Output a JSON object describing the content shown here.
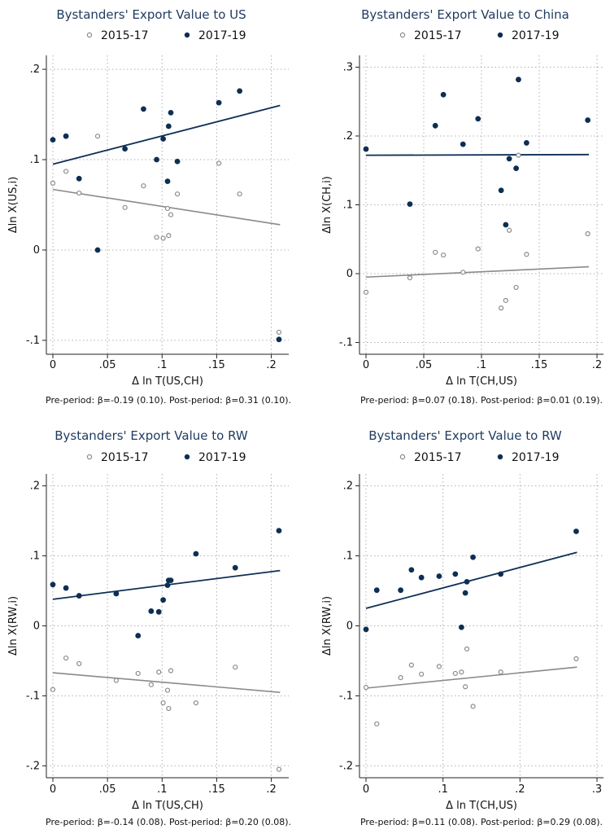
{
  "colors": {
    "pre": "#8a8a8a",
    "post": "#0d2f55",
    "grid": "#b0b0b0",
    "axis": "#222222",
    "title": "#1f3a5f"
  },
  "legend_labels": [
    "2015-17",
    "2017-19"
  ],
  "chart_data": [
    {
      "type": "scatter",
      "title": "Bystanders' Export Value to US",
      "xlabel": "Δ ln T(US,CH)",
      "ylabel": "Δln X(US,i)",
      "xticks": [
        "0",
        ".05",
        ".1",
        ".15",
        ".2"
      ],
      "yticks": [
        ".2",
        ".1",
        "0",
        "-.1"
      ],
      "xlim": [
        0,
        0.21
      ],
      "ylim": [
        -0.11,
        0.21
      ],
      "legend_position": "top",
      "grid": true,
      "note": "Pre-period: β=-0.19 (0.10). Post-period: β=0.31 (0.10).",
      "series": [
        {
          "name": "2015-17",
          "points": [
            [
              0.0,
              0.074
            ],
            [
              0.012,
              0.087
            ],
            [
              0.024,
              0.063
            ],
            [
              0.041,
              0.126
            ],
            [
              0.066,
              0.047
            ],
            [
              0.083,
              0.071
            ],
            [
              0.095,
              0.014
            ],
            [
              0.101,
              0.013
            ],
            [
              0.105,
              0.046
            ],
            [
              0.106,
              0.016
            ],
            [
              0.108,
              0.039
            ],
            [
              0.114,
              0.062
            ],
            [
              0.152,
              0.096
            ],
            [
              0.171,
              0.062
            ],
            [
              0.207,
              -0.091
            ]
          ],
          "fit": [
            [
              0.0,
              0.067
            ],
            [
              0.208,
              0.028
            ]
          ]
        },
        {
          "name": "2017-19",
          "points": [
            [
              0.0,
              0.122
            ],
            [
              0.012,
              0.126
            ],
            [
              0.024,
              0.079
            ],
            [
              0.041,
              0.0
            ],
            [
              0.066,
              0.112
            ],
            [
              0.083,
              0.156
            ],
            [
              0.095,
              0.1
            ],
            [
              0.101,
              0.123
            ],
            [
              0.105,
              0.076
            ],
            [
              0.106,
              0.137
            ],
            [
              0.108,
              0.152
            ],
            [
              0.114,
              0.098
            ],
            [
              0.152,
              0.163
            ],
            [
              0.171,
              0.176
            ],
            [
              0.207,
              -0.099
            ]
          ],
          "fit": [
            [
              0.0,
              0.095
            ],
            [
              0.208,
              0.16
            ]
          ]
        }
      ]
    },
    {
      "type": "scatter",
      "title": "Bystanders' Export Value to China",
      "xlabel": "Δ ln T(CH,US)",
      "ylabel": "Δln X(CH,i)",
      "xticks": [
        "0",
        ".05",
        ".1",
        ".15",
        ".2"
      ],
      "yticks": [
        ".3",
        ".2",
        ".1",
        "0",
        "-.1"
      ],
      "xlim": [
        0,
        0.2
      ],
      "ylim": [
        -0.11,
        0.31
      ],
      "legend_position": "top",
      "grid": true,
      "note": "Pre-period: β=0.07 (0.18). Post-period: β=0.01 (0.19).",
      "series": [
        {
          "name": "2015-17",
          "points": [
            [
              0.0,
              -0.027
            ],
            [
              0.038,
              -0.006
            ],
            [
              0.06,
              0.031
            ],
            [
              0.067,
              0.027
            ],
            [
              0.084,
              0.002
            ],
            [
              0.097,
              0.036
            ],
            [
              0.117,
              -0.05
            ],
            [
              0.121,
              -0.039
            ],
            [
              0.124,
              0.063
            ],
            [
              0.13,
              -0.02
            ],
            [
              0.132,
              0.172
            ],
            [
              0.139,
              0.028
            ],
            [
              0.192,
              0.058
            ]
          ],
          "fit": [
            [
              0.0,
              -0.005
            ],
            [
              0.193,
              0.01
            ]
          ]
        },
        {
          "name": "2017-19",
          "points": [
            [
              0.0,
              0.181
            ],
            [
              0.038,
              0.101
            ],
            [
              0.06,
              0.215
            ],
            [
              0.067,
              0.26
            ],
            [
              0.084,
              0.188
            ],
            [
              0.097,
              0.225
            ],
            [
              0.117,
              0.121
            ],
            [
              0.121,
              0.071
            ],
            [
              0.124,
              0.167
            ],
            [
              0.13,
              0.153
            ],
            [
              0.132,
              0.282
            ],
            [
              0.139,
              0.19
            ],
            [
              0.192,
              0.223
            ]
          ],
          "fit": [
            [
              0.0,
              0.172
            ],
            [
              0.193,
              0.173
            ]
          ]
        }
      ]
    },
    {
      "type": "scatter",
      "title": "Bystanders' Export Value to RW",
      "xlabel": "Δ ln T(US,CH)",
      "ylabel": "Δln X(RW,i)",
      "xticks": [
        "0",
        ".05",
        ".1",
        ".15",
        ".2"
      ],
      "yticks": [
        ".2",
        ".1",
        "0",
        "-.1",
        "-.2"
      ],
      "xlim": [
        0,
        0.21
      ],
      "ylim": [
        -0.21,
        0.21
      ],
      "legend_position": "top",
      "grid": true,
      "note": "Pre-period: β=-0.14 (0.08). Post-period: β=0.20 (0.08).",
      "series": [
        {
          "name": "2015-17",
          "points": [
            [
              0.0,
              -0.091
            ],
            [
              0.012,
              -0.046
            ],
            [
              0.024,
              -0.054
            ],
            [
              0.058,
              -0.078
            ],
            [
              0.078,
              -0.068
            ],
            [
              0.09,
              -0.084
            ],
            [
              0.097,
              -0.066
            ],
            [
              0.101,
              -0.11
            ],
            [
              0.105,
              -0.092
            ],
            [
              0.106,
              -0.118
            ],
            [
              0.108,
              -0.064
            ],
            [
              0.131,
              -0.11
            ],
            [
              0.167,
              -0.059
            ],
            [
              0.207,
              -0.205
            ]
          ],
          "fit": [
            [
              0.0,
              -0.067
            ],
            [
              0.208,
              -0.095
            ]
          ]
        },
        {
          "name": "2017-19",
          "points": [
            [
              0.0,
              0.059
            ],
            [
              0.012,
              0.054
            ],
            [
              0.024,
              0.043
            ],
            [
              0.058,
              0.046
            ],
            [
              0.078,
              -0.014
            ],
            [
              0.09,
              0.021
            ],
            [
              0.097,
              0.02
            ],
            [
              0.101,
              0.037
            ],
            [
              0.105,
              0.058
            ],
            [
              0.106,
              0.065
            ],
            [
              0.108,
              0.065
            ],
            [
              0.131,
              0.103
            ],
            [
              0.167,
              0.083
            ],
            [
              0.207,
              0.136
            ]
          ],
          "fit": [
            [
              0.0,
              0.038
            ],
            [
              0.208,
              0.079
            ]
          ]
        }
      ]
    },
    {
      "type": "scatter",
      "title": "Bystanders' Export Value to RW",
      "xlabel": "Δ ln T(CH,US)",
      "ylabel": "Δln X(RW,i)",
      "xticks": [
        "0",
        ".1",
        ".2",
        ".3"
      ],
      "yticks": [
        ".2",
        ".1",
        "0",
        "-.1",
        "-.2"
      ],
      "xlim": [
        0,
        0.3
      ],
      "ylim": [
        -0.21,
        0.21
      ],
      "legend_position": "top",
      "grid": true,
      "note": "Pre-period: β=0.11 (0.08). Post-period: β=0.29 (0.08).",
      "series": [
        {
          "name": "2015-17",
          "points": [
            [
              0.0,
              -0.088
            ],
            [
              0.014,
              -0.14
            ],
            [
              0.045,
              -0.074
            ],
            [
              0.059,
              -0.056
            ],
            [
              0.072,
              -0.069
            ],
            [
              0.095,
              -0.058
            ],
            [
              0.116,
              -0.068
            ],
            [
              0.124,
              -0.066
            ],
            [
              0.129,
              -0.087
            ],
            [
              0.131,
              -0.033
            ],
            [
              0.139,
              -0.115
            ],
            [
              0.175,
              -0.066
            ],
            [
              0.273,
              -0.047
            ]
          ],
          "fit": [
            [
              0.0,
              -0.089
            ],
            [
              0.274,
              -0.059
            ]
          ]
        },
        {
          "name": "2017-19",
          "points": [
            [
              0.0,
              -0.005
            ],
            [
              0.014,
              0.051
            ],
            [
              0.045,
              0.051
            ],
            [
              0.059,
              0.08
            ],
            [
              0.072,
              0.069
            ],
            [
              0.095,
              0.071
            ],
            [
              0.116,
              0.074
            ],
            [
              0.124,
              -0.002
            ],
            [
              0.129,
              0.047
            ],
            [
              0.131,
              0.063
            ],
            [
              0.139,
              0.098
            ],
            [
              0.175,
              0.074
            ],
            [
              0.273,
              0.135
            ]
          ],
          "fit": [
            [
              0.0,
              0.025
            ],
            [
              0.274,
              0.105
            ]
          ]
        }
      ]
    }
  ]
}
